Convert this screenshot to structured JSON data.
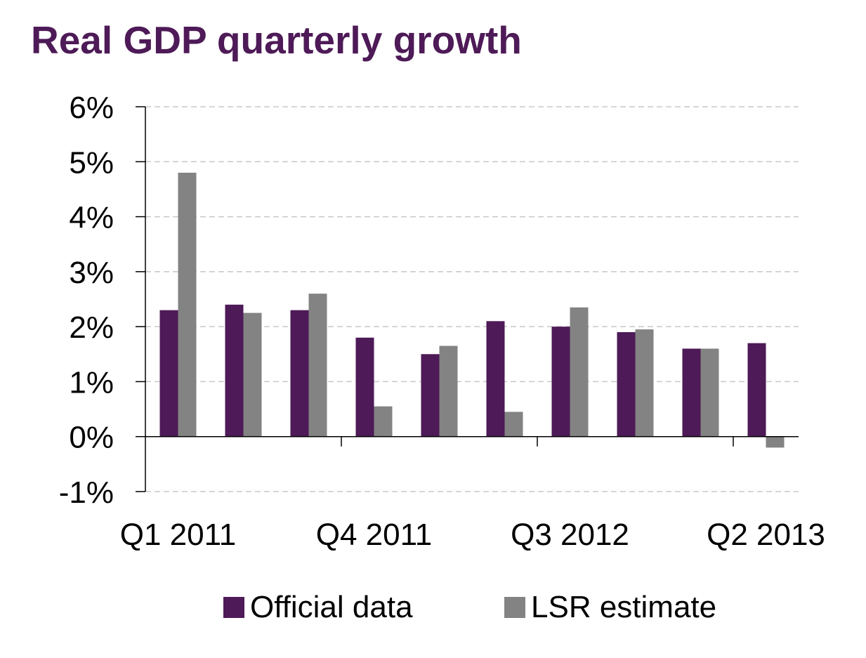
{
  "chart_data": {
    "type": "bar",
    "title": "Real GDP quarterly growth",
    "xlabel": "",
    "ylabel": "",
    "ylim": [
      -1,
      6
    ],
    "y_ticks": [
      "6%",
      "5%",
      "4%",
      "3%",
      "2%",
      "1%",
      "0%",
      "-1%"
    ],
    "y_tick_values": [
      6,
      5,
      4,
      3,
      2,
      1,
      0,
      -1
    ],
    "x_tick_labels": [
      "Q1 2011",
      "Q4 2011",
      "Q3 2012",
      "Q2 2013"
    ],
    "categories": [
      "Q1 2011",
      "Q2 2011",
      "Q3 2011",
      "Q4 2011",
      "Q1 2012",
      "Q2 2012",
      "Q3 2012",
      "Q4 2012",
      "Q1 2013",
      "Q2 2013"
    ],
    "series": [
      {
        "name": "Official data",
        "values": [
          2.3,
          2.4,
          2.3,
          1.8,
          1.5,
          2.1,
          2.0,
          1.9,
          1.6,
          1.7
        ]
      },
      {
        "name": "LSR estimate",
        "values": [
          4.8,
          2.25,
          2.6,
          0.55,
          1.65,
          0.45,
          2.35,
          1.95,
          1.6,
          -0.2
        ]
      }
    ],
    "grid": "horizontal dashed",
    "legend_position": "bottom",
    "colors": {
      "title": "#4e1a57",
      "official": "#4e1a57",
      "lsr": "#838383",
      "grid": "#c8c8c8",
      "axis": "#000000"
    }
  }
}
